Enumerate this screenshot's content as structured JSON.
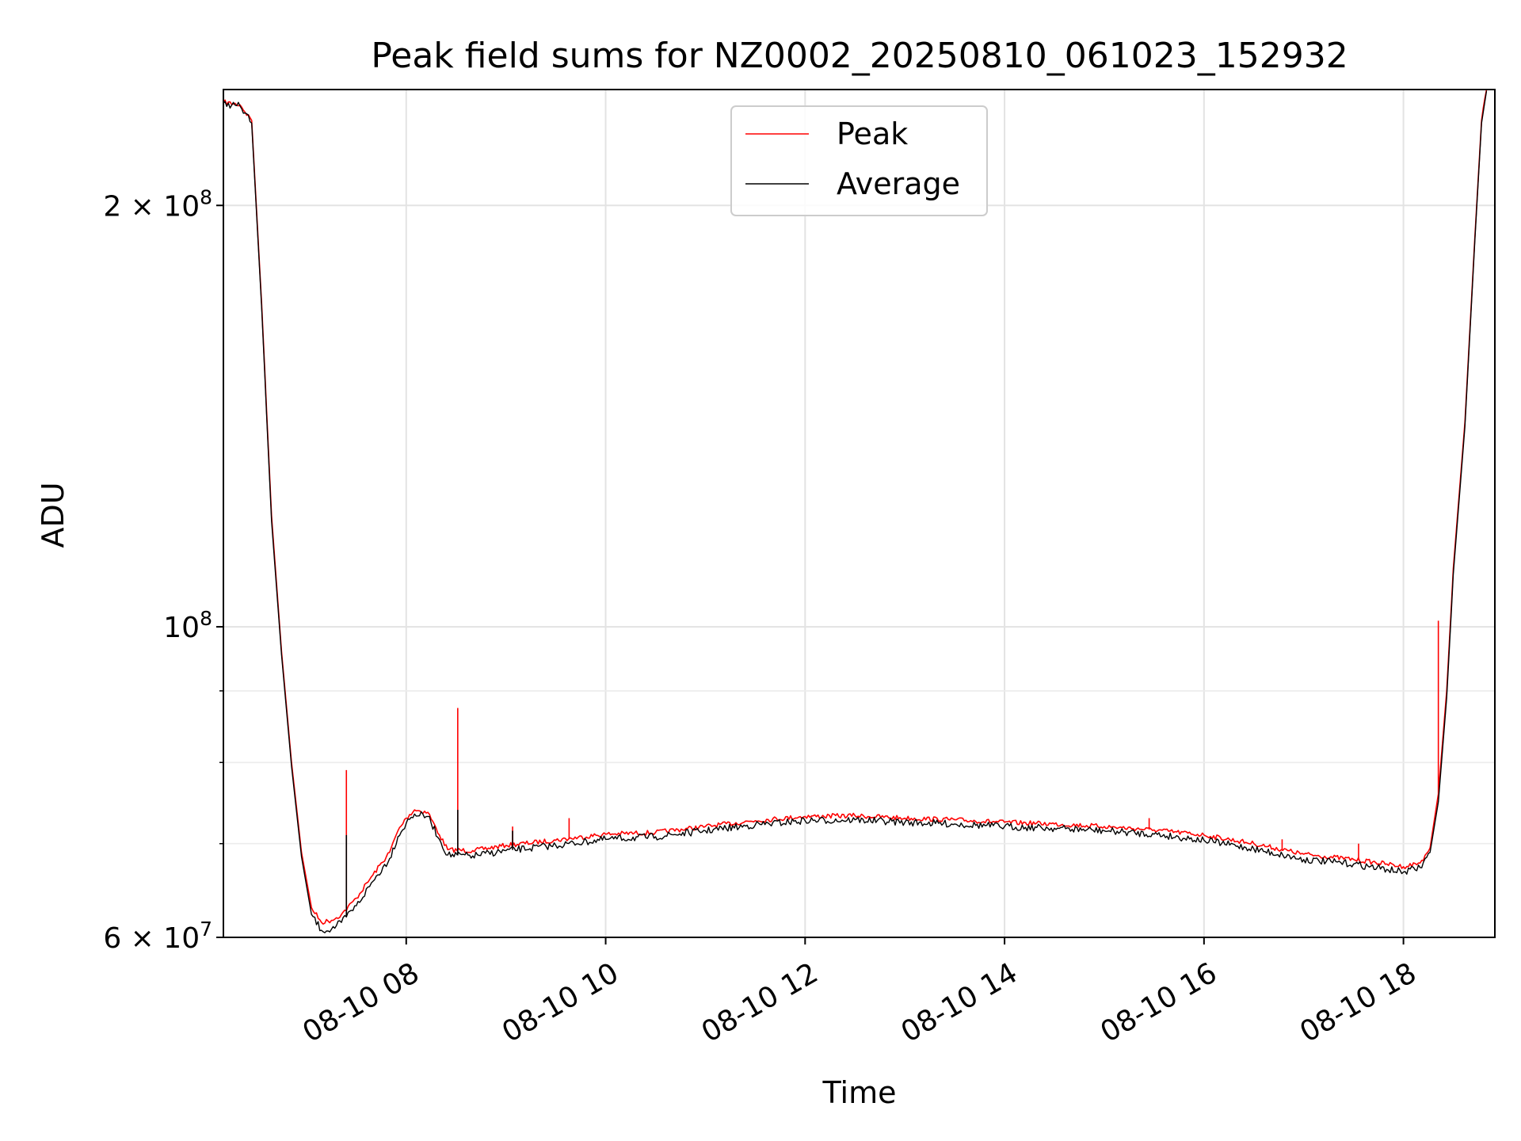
{
  "chart_data": {
    "type": "line",
    "title": "Peak field sums for NZ0002_20250810_061023_152932",
    "xlabel": "Time",
    "ylabel": "ADU",
    "x_unit": "hours (Aug 10, 2025)",
    "xlim": [
      "08-10 06:10",
      "08-10 18:55"
    ],
    "ylim": [
      60000000,
      242000000
    ],
    "yscale": "log",
    "grid": true,
    "x_ticks": [
      {
        "x": "08-10 08",
        "label": "08-10 08"
      },
      {
        "x": "08-10 10",
        "label": "08-10 10"
      },
      {
        "x": "08-10 12",
        "label": "08-10 12"
      },
      {
        "x": "08-10 14",
        "label": "08-10 14"
      },
      {
        "x": "08-10 16",
        "label": "08-10 16"
      },
      {
        "x": "08-10 18",
        "label": "08-10 18"
      }
    ],
    "y_major_ticks": [
      {
        "y": 60000000,
        "mantissa": "6",
        "exp": "7"
      },
      {
        "y": 100000000,
        "mantissa": "",
        "exp": "8"
      },
      {
        "y": 200000000,
        "mantissa": "2",
        "exp": "8"
      }
    ],
    "y_minor_ticks": [
      70000000,
      80000000,
      90000000
    ],
    "legend": {
      "position": "top-center"
    },
    "series": [
      {
        "name": "Peak",
        "color": "#ff0000",
        "points": [
          [
            "08-10 06:10",
            237000000
          ],
          [
            "08-10 06:20",
            236000000
          ],
          [
            "08-10 06:27",
            230000000
          ],
          [
            "08-10 06:33",
            170000000
          ],
          [
            "08-10 06:39",
            120000000
          ],
          [
            "08-10 06:45",
            96000000
          ],
          [
            "08-10 06:51",
            80000000
          ],
          [
            "08-10 06:57",
            69000000
          ],
          [
            "08-10 07:03",
            63000000
          ],
          [
            "08-10 07:09",
            61500000
          ],
          [
            "08-10 07:15",
            61700000
          ],
          [
            "08-10 07:21",
            62300000
          ],
          [
            "08-10 07:30",
            64000000
          ],
          [
            "08-10 07:40",
            66500000
          ],
          [
            "08-10 07:50",
            69000000
          ],
          [
            "08-10 07:55",
            71500000
          ],
          [
            "08-10 08:00",
            73000000
          ],
          [
            "08-10 08:05",
            74000000
          ],
          [
            "08-10 08:13",
            73700000
          ],
          [
            "08-10 08:20",
            71000000
          ],
          [
            "08-10 08:25",
            69300000
          ],
          [
            "08-10 08:40",
            69200000
          ],
          [
            "08-10 09:00",
            69800000
          ],
          [
            "08-10 09:30",
            70400000
          ],
          [
            "08-10 10:00",
            71100000
          ],
          [
            "08-10 10:30",
            71300000
          ],
          [
            "08-10 11:00",
            72000000
          ],
          [
            "08-10 11:30",
            72700000
          ],
          [
            "08-10 12:00",
            73200000
          ],
          [
            "08-10 12:30",
            73300000
          ],
          [
            "08-10 13:00",
            73000000
          ],
          [
            "08-10 13:30",
            72800000
          ],
          [
            "08-10 14:00",
            72500000
          ],
          [
            "08-10 14:30",
            72300000
          ],
          [
            "08-10 15:00",
            72000000
          ],
          [
            "08-10 15:30",
            71600000
          ],
          [
            "08-10 16:00",
            71000000
          ],
          [
            "08-10 16:30",
            70000000
          ],
          [
            "08-10 17:00",
            68800000
          ],
          [
            "08-10 17:30",
            68200000
          ],
          [
            "08-10 17:50",
            67700000
          ],
          [
            "08-10 18:00",
            67400000
          ],
          [
            "08-10 18:10",
            67800000
          ],
          [
            "08-10 18:16",
            69500000
          ],
          [
            "08-10 18:21",
            76000000
          ],
          [
            "08-10 18:26",
            90000000
          ],
          [
            "08-10 18:30",
            110000000
          ],
          [
            "08-10 18:37",
            140000000
          ],
          [
            "08-10 18:43",
            190000000
          ],
          [
            "08-10 18:47",
            230000000
          ],
          [
            "08-10 18:50",
            242000000
          ]
        ],
        "spikes": [
          {
            "x": "08-10 07:24",
            "y": 79000000
          },
          {
            "x": "08-10 08:31",
            "y": 87500000
          },
          {
            "x": "08-10 18:21",
            "y": 101000000
          },
          {
            "x": "08-10 17:33",
            "y": 70000000
          },
          {
            "x": "08-10 16:47",
            "y": 70500000
          },
          {
            "x": "08-10 09:04",
            "y": 72000000
          },
          {
            "x": "08-10 09:38",
            "y": 73000000
          },
          {
            "x": "08-10 15:27",
            "y": 73000000
          }
        ]
      },
      {
        "name": "Average",
        "color": "#000000",
        "points": [
          [
            "08-10 06:10",
            236500000
          ],
          [
            "08-10 06:20",
            235500000
          ],
          [
            "08-10 06:27",
            229000000
          ],
          [
            "08-10 06:33",
            169000000
          ],
          [
            "08-10 06:39",
            119000000
          ],
          [
            "08-10 06:45",
            95500000
          ],
          [
            "08-10 06:51",
            79500000
          ],
          [
            "08-10 06:57",
            68500000
          ],
          [
            "08-10 07:03",
            62300000
          ],
          [
            "08-10 07:09",
            60700000
          ],
          [
            "08-10 07:15",
            60800000
          ],
          [
            "08-10 07:21",
            61500000
          ],
          [
            "08-10 07:30",
            63200000
          ],
          [
            "08-10 07:40",
            65800000
          ],
          [
            "08-10 07:50",
            68300000
          ],
          [
            "08-10 07:55",
            70800000
          ],
          [
            "08-10 08:00",
            72400000
          ],
          [
            "08-10 08:05",
            73500000
          ],
          [
            "08-10 08:13",
            73200000
          ],
          [
            "08-10 08:20",
            70500000
          ],
          [
            "08-10 08:25",
            68700000
          ],
          [
            "08-10 08:40",
            68600000
          ],
          [
            "08-10 09:00",
            69200000
          ],
          [
            "08-10 09:30",
            69800000
          ],
          [
            "08-10 10:00",
            70500000
          ],
          [
            "08-10 10:30",
            70800000
          ],
          [
            "08-10 11:00",
            71500000
          ],
          [
            "08-10 11:30",
            72200000
          ],
          [
            "08-10 12:00",
            72700000
          ],
          [
            "08-10 12:30",
            72800000
          ],
          [
            "08-10 13:00",
            72500000
          ],
          [
            "08-10 13:30",
            72300000
          ],
          [
            "08-10 14:00",
            72000000
          ],
          [
            "08-10 14:30",
            71800000
          ],
          [
            "08-10 15:00",
            71500000
          ],
          [
            "08-10 15:30",
            71100000
          ],
          [
            "08-10 16:00",
            70400000
          ],
          [
            "08-10 16:30",
            69400000
          ],
          [
            "08-10 17:00",
            68200000
          ],
          [
            "08-10 17:30",
            67700000
          ],
          [
            "08-10 17:50",
            67100000
          ],
          [
            "08-10 18:00",
            66800000
          ],
          [
            "08-10 18:10",
            67300000
          ],
          [
            "08-10 18:16",
            69000000
          ],
          [
            "08-10 18:21",
            75000000
          ],
          [
            "08-10 18:26",
            89000000
          ],
          [
            "08-10 18:30",
            109000000
          ],
          [
            "08-10 18:37",
            139000000
          ],
          [
            "08-10 18:43",
            189000000
          ],
          [
            "08-10 18:47",
            229000000
          ],
          [
            "08-10 18:50",
            241500000
          ]
        ],
        "spikes": [
          {
            "x": "08-10 08:31",
            "y": 74000000
          },
          {
            "x": "08-10 07:24",
            "y": 71000000
          },
          {
            "x": "08-10 09:04",
            "y": 71500000
          }
        ]
      }
    ]
  }
}
